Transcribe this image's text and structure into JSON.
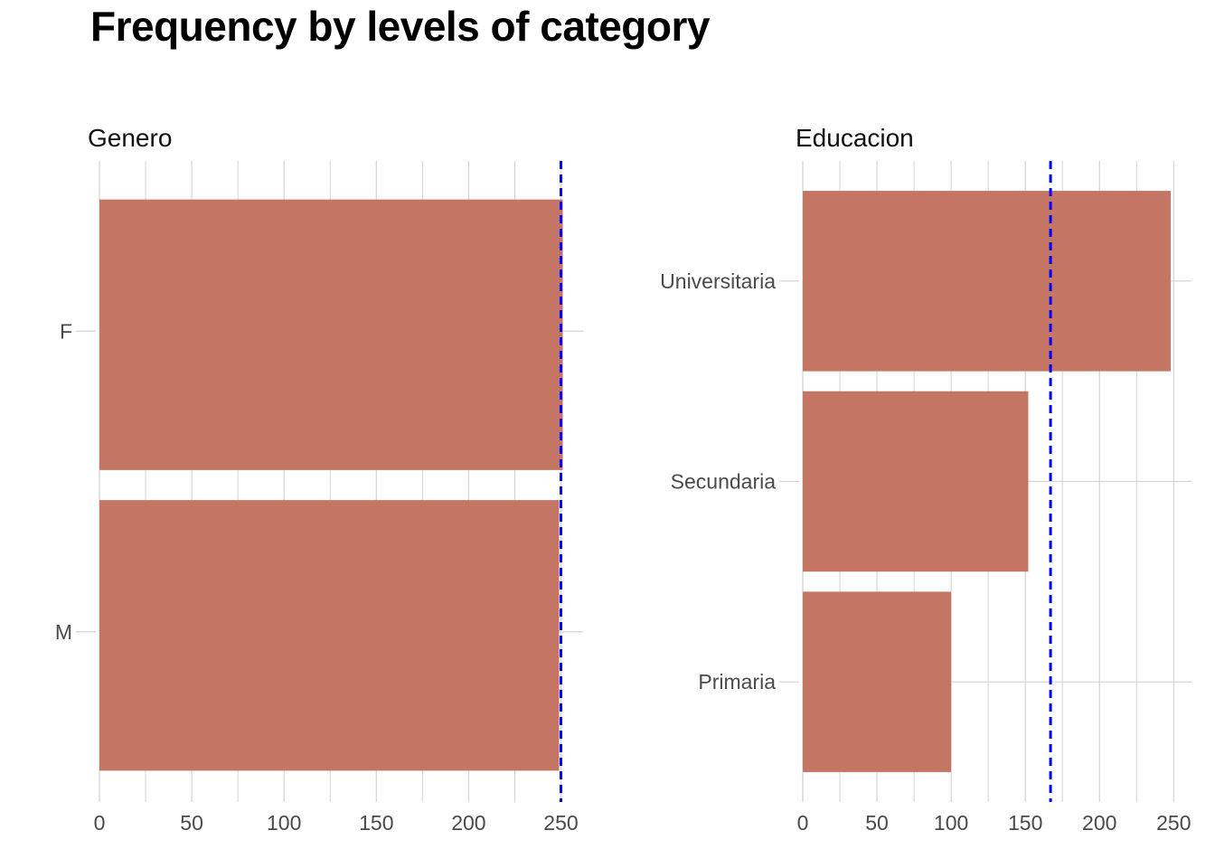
{
  "title": "Frequency by levels of category",
  "colors": {
    "bar": "#C47564",
    "mean_line": "#0000FF",
    "grid": "#D3D3D3",
    "text": "#4A4A4A"
  },
  "chart_data": [
    {
      "type": "bar",
      "orientation": "horizontal",
      "title": "Genero",
      "categories": [
        "F",
        "M"
      ],
      "values": [
        251,
        249
      ],
      "mean_line": 250,
      "xlim": [
        0,
        262
      ],
      "xticks": [
        0,
        50,
        100,
        150,
        200,
        250
      ],
      "xlabel": "",
      "ylabel": "",
      "grid": true,
      "legend": "none"
    },
    {
      "type": "bar",
      "orientation": "horizontal",
      "title": "Educacion",
      "categories": [
        "Universitaria",
        "Secundaria",
        "Primaria"
      ],
      "values": [
        248,
        152,
        100
      ],
      "mean_line": 167,
      "xlim": [
        0,
        262
      ],
      "xticks": [
        0,
        50,
        100,
        150,
        200,
        250
      ],
      "xlabel": "",
      "ylabel": "",
      "grid": true,
      "legend": "none"
    }
  ]
}
